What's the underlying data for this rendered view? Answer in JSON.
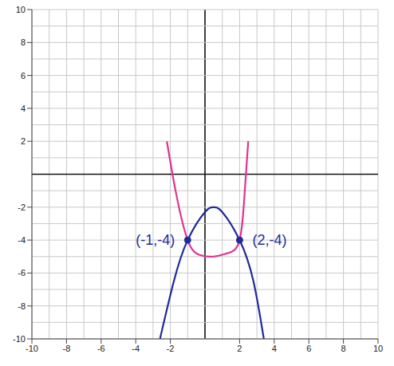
{
  "chart_data": {
    "type": "line",
    "xlim": [
      -10,
      10
    ],
    "ylim": [
      -10,
      10
    ],
    "xticks": [
      -10,
      -8,
      -6,
      -4,
      -2,
      2,
      4,
      6,
      8,
      10
    ],
    "yticks": [
      -10,
      -8,
      -6,
      -4,
      -2,
      2,
      4,
      6,
      8,
      10
    ],
    "grid": true,
    "series": [
      {
        "color": "#e0338f",
        "marker": "none",
        "line_style": "solid",
        "x": [
          -2.2,
          -1.7,
          -1,
          -0.3,
          0.5,
          1.3,
          2,
          2.3,
          2.5
        ],
        "values": [
          2,
          -1,
          -4,
          -4.9,
          -5,
          -4.8,
          -4,
          -1,
          2
        ]
      },
      {
        "color": "#1f2a9c",
        "marker": "none",
        "line_style": "solid",
        "x": [
          -2.6,
          -1.8,
          -1,
          0,
          0.5,
          1,
          2,
          2.8,
          3.4
        ],
        "values": [
          -10,
          -6.5,
          -4,
          -2.3,
          -2,
          -2.3,
          -4,
          -6.5,
          -10
        ]
      }
    ],
    "annotations": [
      {
        "text": "(-1,-4)",
        "x": -1,
        "y": -4,
        "color": "#1f2a9c"
      },
      {
        "text": "(2,-4)",
        "x": 2,
        "y": -4,
        "color": "#1f2a9c"
      }
    ]
  }
}
